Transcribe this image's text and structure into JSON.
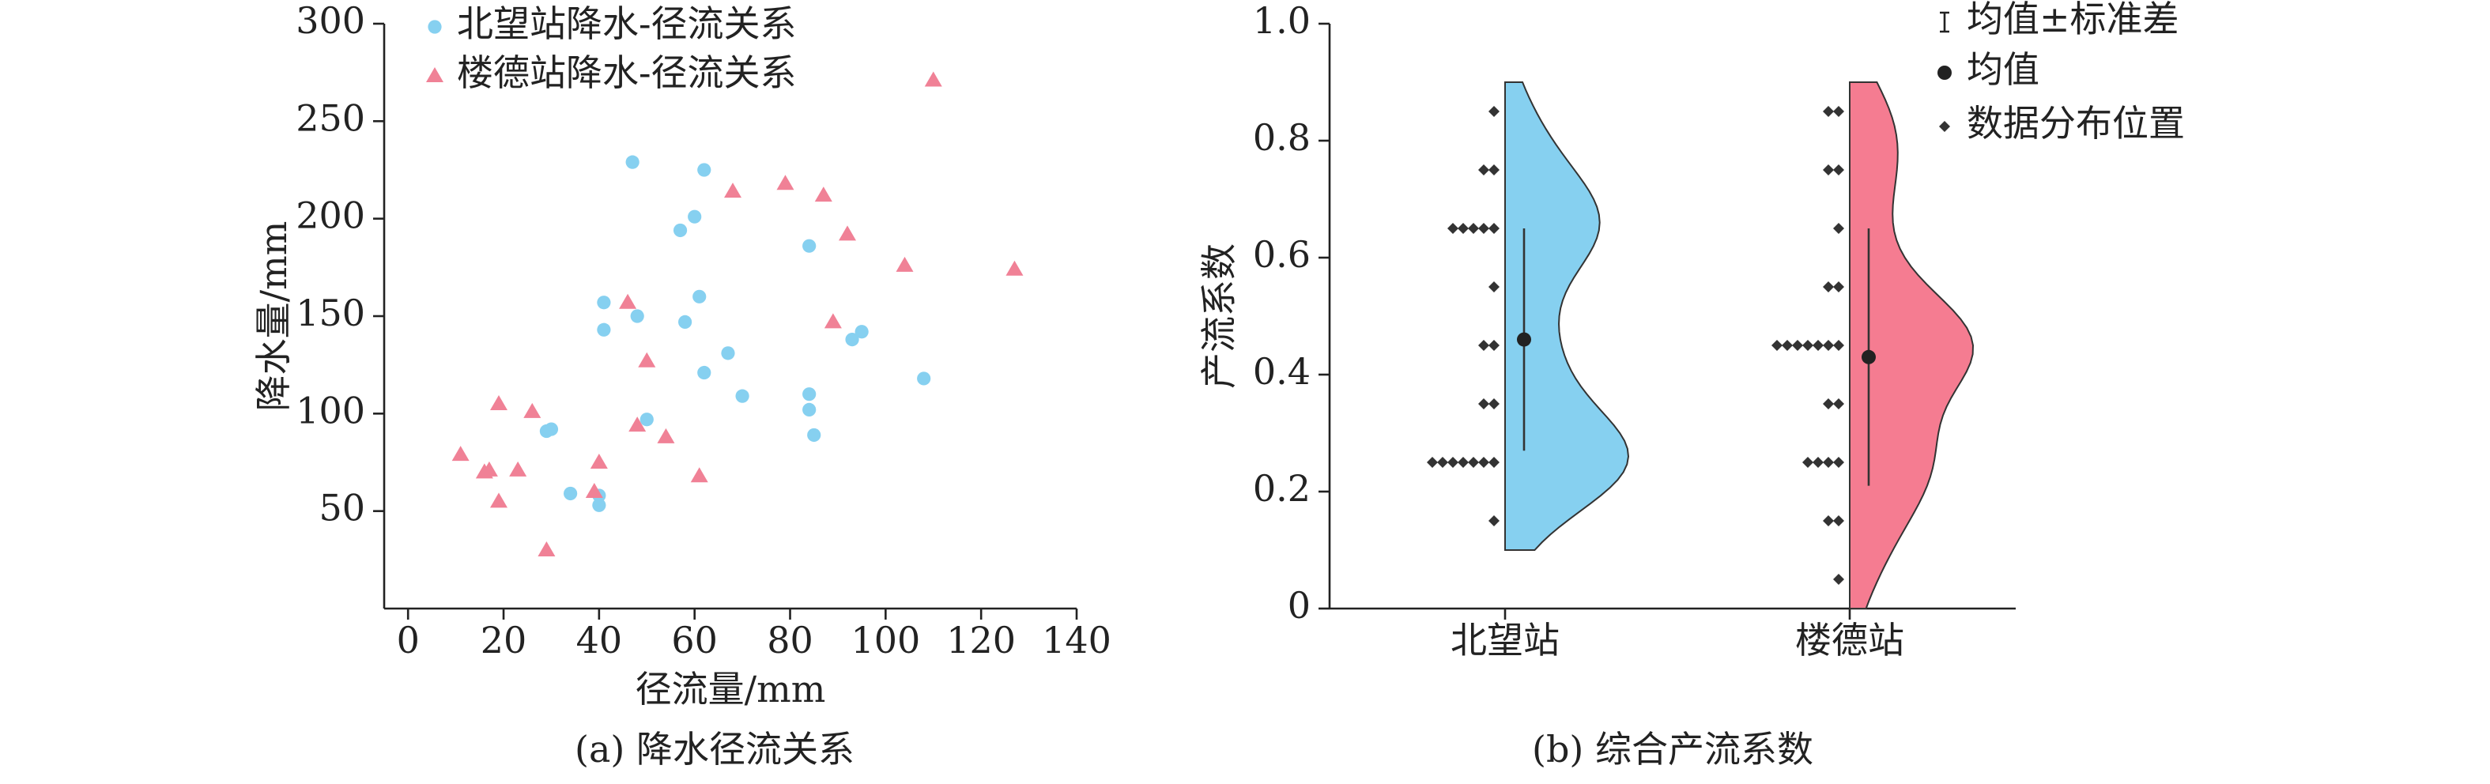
{
  "chart_data": [
    {
      "type": "scatter",
      "caption": "(a) 降水径流关系",
      "x_label": "径流量/mm",
      "y_label": "降水量/mm",
      "xlim": [
        -5,
        140
      ],
      "ylim": [
        0,
        300
      ],
      "xticks": [
        0,
        20,
        40,
        60,
        80,
        100,
        120,
        140
      ],
      "yticks": [
        50,
        100,
        150,
        200,
        250,
        300
      ],
      "series": [
        {
          "name": "北望站降水-径流关系",
          "color": "#86d0f0",
          "marker": "circle",
          "x": [
            47,
            62,
            60,
            57,
            41,
            41,
            48,
            61,
            58,
            84,
            67,
            62,
            70,
            84,
            84,
            85,
            93,
            95,
            108,
            50,
            29,
            30,
            34,
            40,
            40
          ],
          "y": [
            229,
            225,
            201,
            194,
            157,
            143,
            150,
            160,
            147,
            186,
            131,
            121,
            109,
            110,
            102,
            89,
            138,
            142,
            118,
            97,
            91,
            92,
            59,
            53,
            58
          ]
        },
        {
          "name": "楼德站降水-径流关系",
          "color": "#f08196",
          "marker": "triangle",
          "x": [
            110,
            68,
            79,
            87,
            92,
            104,
            127,
            46,
            89,
            50,
            48,
            54,
            61,
            40,
            39,
            11,
            17,
            16,
            19,
            19,
            26,
            23,
            29
          ],
          "y": [
            271,
            214,
            218,
            212,
            192,
            176,
            174,
            157,
            147,
            127,
            94,
            88,
            68,
            75,
            60,
            79,
            71,
            70,
            55,
            105,
            101,
            71,
            30
          ]
        }
      ]
    },
    {
      "type": "violin",
      "caption": "(b) 综合产流系数",
      "y_label": "产流系数",
      "categories": [
        "北望站",
        "楼德站"
      ],
      "ylim": [
        0,
        1
      ],
      "yticks": [
        0,
        0.2,
        0.4,
        0.6,
        0.8,
        {
          "value": 1,
          "label": "1.0"
        }
      ],
      "legend": {
        "std": "均值±标准差",
        "mean": "均值",
        "points": "数据分布位置"
      },
      "groups": [
        {
          "color": "#86d0f0",
          "mean": 0.46,
          "std": 0.19,
          "points": [
            0.85,
            0.75,
            0.75,
            0.65,
            0.65,
            0.65,
            0.65,
            0.65,
            0.55,
            0.45,
            0.45,
            0.35,
            0.35,
            0.25,
            0.25,
            0.25,
            0.25,
            0.25,
            0.25,
            0.25,
            0.15
          ]
        },
        {
          "color": "#f57c91",
          "mean": 0.43,
          "std": 0.22,
          "points": [
            0.85,
            0.85,
            0.75,
            0.75,
            0.65,
            0.55,
            0.55,
            0.45,
            0.45,
            0.45,
            0.45,
            0.45,
            0.45,
            0.45,
            0.35,
            0.35,
            0.25,
            0.25,
            0.25,
            0.25,
            0.15,
            0.15,
            0.05
          ]
        }
      ]
    }
  ]
}
